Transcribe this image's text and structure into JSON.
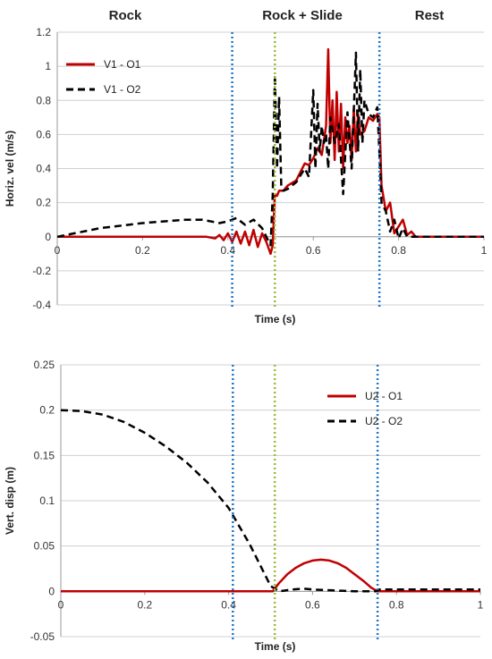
{
  "phase_labels": [
    "Rock",
    "Rock + Slide",
    "Rest"
  ],
  "chart_data": [
    {
      "type": "line",
      "xlabel": "Time (s)",
      "ylabel": "Horiz. vel (m/s)",
      "xlim": [
        0,
        1
      ],
      "ylim": [
        -0.4,
        1.2
      ],
      "xticks": [
        "0",
        "0.2",
        "0.4",
        "0.6",
        "0.8",
        "1"
      ],
      "yticks": [
        "-0.4",
        "-0.2",
        "0",
        "0.2",
        "0.4",
        "0.6",
        "0.8",
        "1",
        "1.2"
      ],
      "grid": "horizontal",
      "legend_position": "top-left",
      "phase_boundaries": [
        0.41,
        0.51,
        0.755
      ],
      "series": [
        {
          "name": "V1 - O1",
          "color": "#c00000",
          "style": "solid",
          "x": [
            0,
            0.2,
            0.35,
            0.37,
            0.38,
            0.39,
            0.4,
            0.41,
            0.42,
            0.43,
            0.44,
            0.45,
            0.46,
            0.47,
            0.48,
            0.49,
            0.5,
            0.505,
            0.51,
            0.515,
            0.52,
            0.53,
            0.54,
            0.56,
            0.58,
            0.59,
            0.6,
            0.61,
            0.62,
            0.63,
            0.635,
            0.64,
            0.645,
            0.65,
            0.655,
            0.66,
            0.665,
            0.67,
            0.675,
            0.68,
            0.685,
            0.69,
            0.695,
            0.7,
            0.705,
            0.71,
            0.72,
            0.73,
            0.74,
            0.75,
            0.755,
            0.76,
            0.77,
            0.78,
            0.79,
            0.8,
            0.81,
            0.82,
            0.83,
            0.84,
            0.85,
            1.0
          ],
          "y": [
            0,
            0,
            0,
            -0.01,
            0.01,
            -0.02,
            0.02,
            -0.03,
            0.03,
            -0.04,
            0.03,
            -0.05,
            0.04,
            -0.06,
            0.02,
            -0.03,
            -0.1,
            -0.05,
            0.25,
            0.24,
            0.27,
            0.27,
            0.3,
            0.33,
            0.43,
            0.42,
            0.46,
            0.52,
            0.48,
            0.65,
            1.1,
            0.55,
            0.8,
            0.45,
            0.85,
            0.5,
            0.78,
            0.4,
            0.7,
            0.55,
            0.65,
            0.45,
            0.75,
            0.5,
            0.72,
            0.6,
            0.62,
            0.7,
            0.68,
            0.72,
            0.7,
            0.3,
            0.15,
            0.2,
            0.02,
            0.06,
            0.1,
            0.01,
            0.03,
            0.0,
            0.0,
            0.0
          ]
        },
        {
          "name": "V1 - O2",
          "color": "#000000",
          "style": "dashed",
          "x": [
            0,
            0.1,
            0.2,
            0.3,
            0.34,
            0.38,
            0.4,
            0.42,
            0.44,
            0.46,
            0.48,
            0.49,
            0.5,
            0.505,
            0.51,
            0.515,
            0.52,
            0.525,
            0.53,
            0.54,
            0.56,
            0.58,
            0.59,
            0.6,
            0.605,
            0.61,
            0.615,
            0.62,
            0.625,
            0.63,
            0.635,
            0.64,
            0.65,
            0.66,
            0.67,
            0.68,
            0.69,
            0.7,
            0.705,
            0.71,
            0.715,
            0.72,
            0.73,
            0.74,
            0.75,
            0.755,
            0.76,
            0.77,
            0.78,
            0.79,
            0.8,
            0.81,
            0.82,
            0.84,
            0.85,
            1.0
          ],
          "y": [
            0,
            0.05,
            0.08,
            0.1,
            0.1,
            0.08,
            0.09,
            0.11,
            0.07,
            0.1,
            0.05,
            0.0,
            -0.05,
            0.25,
            0.95,
            0.4,
            0.82,
            0.3,
            0.27,
            0.28,
            0.32,
            0.4,
            0.35,
            0.86,
            0.4,
            0.78,
            0.5,
            0.65,
            0.55,
            0.6,
            0.4,
            0.7,
            0.55,
            0.66,
            0.25,
            0.73,
            0.4,
            1.08,
            0.5,
            0.98,
            0.55,
            0.8,
            0.72,
            0.7,
            0.76,
            0.5,
            0.2,
            0.15,
            0.03,
            0.1,
            -0.01,
            0.05,
            0.0,
            0.0,
            0.0,
            0.0
          ]
        }
      ]
    },
    {
      "type": "line",
      "xlabel": "Time (s)",
      "ylabel": "Vert. disp (m)",
      "xlim": [
        0,
        1
      ],
      "ylim": [
        -0.05,
        0.25
      ],
      "xticks": [
        "0",
        "0.2",
        "0.4",
        "0.6",
        "0.8",
        "1"
      ],
      "yticks": [
        "-0.05",
        "0",
        "0.05",
        "0.1",
        "0.15",
        "0.2",
        "0.25"
      ],
      "grid": "horizontal",
      "legend_position": "top-right",
      "phase_boundaries": [
        0.41,
        0.51,
        0.755
      ],
      "series": [
        {
          "name": "U2 - O1",
          "color": "#c00000",
          "style": "solid",
          "x": [
            0,
            0.505,
            0.52,
            0.54,
            0.56,
            0.58,
            0.6,
            0.62,
            0.64,
            0.66,
            0.68,
            0.7,
            0.72,
            0.74,
            0.755,
            1.0
          ],
          "y": [
            0,
            0,
            0.009,
            0.019,
            0.026,
            0.031,
            0.034,
            0.035,
            0.034,
            0.031,
            0.026,
            0.019,
            0.012,
            0.004,
            0,
            0
          ]
        },
        {
          "name": "U2 - O2",
          "color": "#000000",
          "style": "dashed",
          "x": [
            0,
            0.05,
            0.1,
            0.15,
            0.2,
            0.25,
            0.3,
            0.35,
            0.4,
            0.45,
            0.5,
            0.52,
            0.55,
            0.58,
            0.6,
            0.65,
            0.7,
            0.75,
            0.76,
            0.8,
            0.9,
            1.0
          ],
          "y": [
            0.2,
            0.199,
            0.195,
            0.187,
            0.175,
            0.16,
            0.142,
            0.12,
            0.092,
            0.052,
            0.006,
            0.0,
            0.002,
            0.003,
            0.002,
            0.001,
            0.0,
            0.0,
            0.002,
            0.002,
            0.002,
            0.002
          ]
        }
      ]
    }
  ]
}
